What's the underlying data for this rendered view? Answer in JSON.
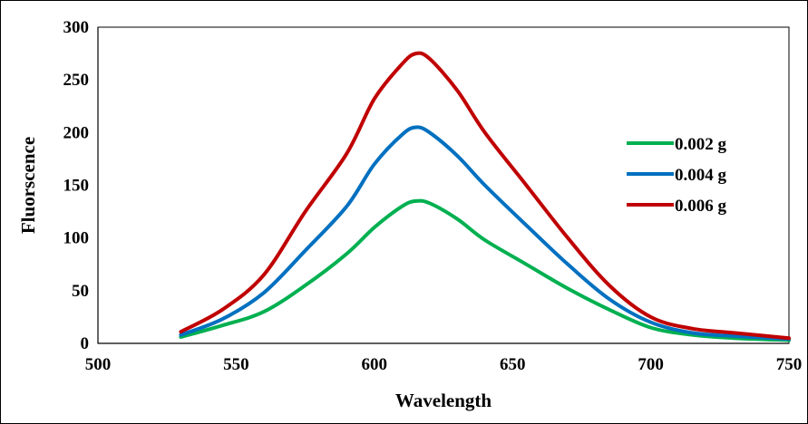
{
  "chart_data": {
    "type": "line",
    "title": "",
    "xlabel": "Wavelength",
    "ylabel": "Fluorscence",
    "xlim": [
      500,
      750
    ],
    "ylim": [
      0,
      300
    ],
    "xticks": [
      500,
      550,
      600,
      650,
      700,
      750
    ],
    "yticks": [
      0,
      50,
      100,
      150,
      200,
      250,
      300
    ],
    "grid": false,
    "legend_position": "right",
    "x": [
      530,
      545,
      560,
      575,
      590,
      600,
      610,
      615,
      620,
      630,
      640,
      655,
      670,
      685,
      700,
      715,
      730,
      750
    ],
    "series": [
      {
        "name": "0.002 g",
        "color": "#00b050",
        "values": [
          6,
          17,
          30,
          55,
          85,
          110,
          130,
          135,
          133,
          118,
          98,
          75,
          52,
          32,
          15,
          8,
          5,
          3
        ]
      },
      {
        "name": "0.004 g",
        "color": "#0070c0",
        "values": [
          8,
          23,
          48,
          88,
          130,
          170,
          198,
          205,
          200,
          178,
          150,
          112,
          75,
          42,
          20,
          10,
          7,
          4
        ]
      },
      {
        "name": "0.006 g",
        "color": "#c00000",
        "values": [
          11,
          32,
          65,
          125,
          180,
          232,
          265,
          275,
          270,
          240,
          200,
          150,
          100,
          55,
          25,
          14,
          10,
          5
        ]
      }
    ]
  }
}
